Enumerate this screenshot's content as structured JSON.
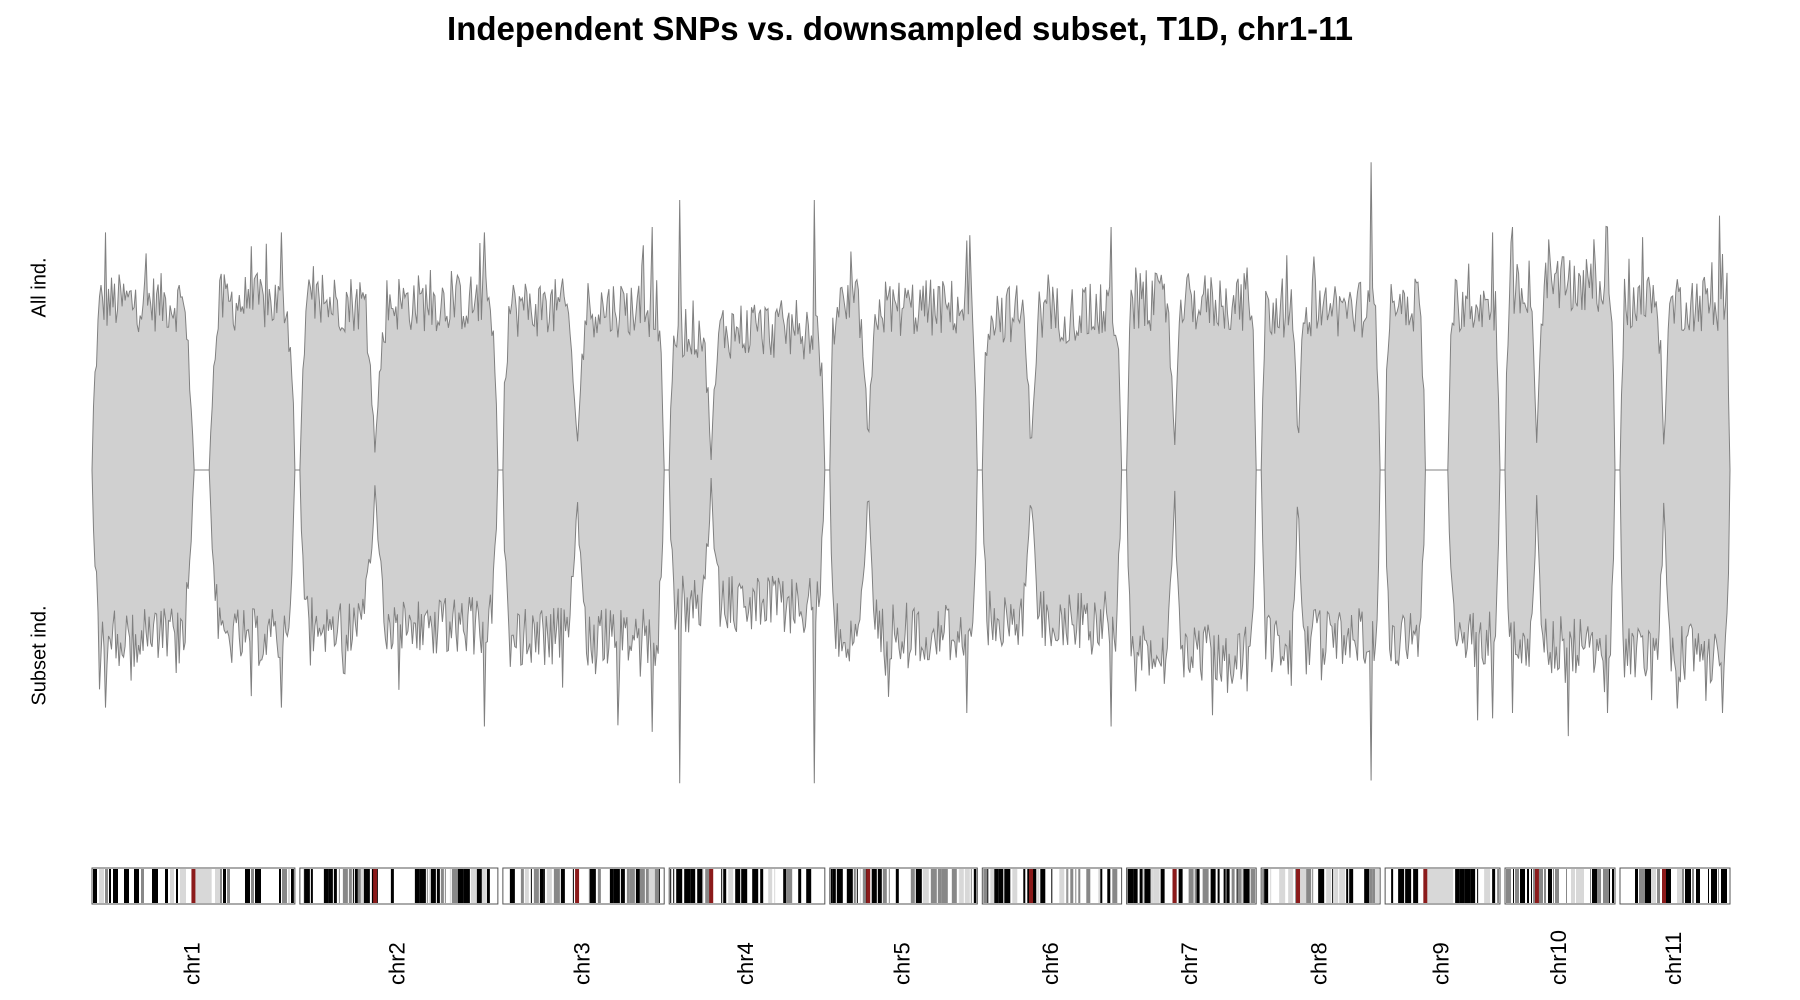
{
  "chart_data": {
    "type": "area",
    "title": "Independent SNPs vs. downsampled subset, T1D, chr1-11",
    "ylabel_top": "All ind.",
    "ylabel_bottom": "Subset ind.",
    "description_of_marks": "Mirrored density track: upper half = all individuals, lower half = subset individuals; ideogram strips below.",
    "chromosomes": [
      {
        "label": "chr1",
        "size": 249,
        "centromere": 0.5,
        "gap": [
          0.5,
          0.58
        ],
        "top_level": 0.62,
        "bottom_level": 0.62,
        "peak_top": 0.88,
        "peak_bottom": 0.88
      },
      {
        "label": "chr2",
        "size": 243,
        "centromere": 0.38,
        "gap": null,
        "top_level": 0.62,
        "bottom_level": 0.58,
        "peak_top": 0.88,
        "peak_bottom": 0.95
      },
      {
        "label": "chr3",
        "size": 198,
        "centromere": 0.46,
        "gap": null,
        "top_level": 0.6,
        "bottom_level": 0.62,
        "peak_top": 0.9,
        "peak_bottom": 0.97
      },
      {
        "label": "chr4",
        "size": 191,
        "centromere": 0.27,
        "gap": null,
        "top_level": 0.52,
        "bottom_level": 0.5,
        "peak_top": 1.0,
        "peak_bottom": 1.16
      },
      {
        "label": "chr5",
        "size": 181,
        "centromere": 0.26,
        "gap": null,
        "top_level": 0.6,
        "bottom_level": 0.6,
        "peak_top": 0.85,
        "peak_bottom": 0.9
      },
      {
        "label": "chr6",
        "size": 171,
        "centromere": 0.35,
        "gap": null,
        "top_level": 0.58,
        "bottom_level": 0.55,
        "peak_top": 0.9,
        "peak_bottom": 0.95
      },
      {
        "label": "chr7",
        "size": 159,
        "centromere": 0.37,
        "gap": null,
        "top_level": 0.62,
        "bottom_level": 0.68,
        "peak_top": 0.75,
        "peak_bottom": 0.82
      },
      {
        "label": "chr8",
        "size": 146,
        "centromere": 0.31,
        "gap": null,
        "top_level": 0.6,
        "bottom_level": 0.62,
        "peak_top": 1.14,
        "peak_bottom": 1.15
      },
      {
        "label": "chr9",
        "size": 141,
        "centromere": 0.35,
        "gap": [
          0.35,
          0.55
        ],
        "top_level": 0.62,
        "bottom_level": 0.62,
        "peak_top": 0.88,
        "peak_bottom": 0.92
      },
      {
        "label": "chr10",
        "size": 135,
        "centromere": 0.29,
        "gap": null,
        "top_level": 0.68,
        "bottom_level": 0.65,
        "peak_top": 0.9,
        "peak_bottom": 0.9
      },
      {
        "label": "chr11",
        "size": 135,
        "centromere": 0.4,
        "gap": null,
        "top_level": 0.62,
        "bottom_level": 0.68,
        "peak_top": 0.8,
        "peak_bottom": 0.9
      }
    ],
    "colors": {
      "fill": "#d0d0d0",
      "line": "#808080",
      "axis": "#808080",
      "ideogram_dark": "#000000",
      "ideogram_mid": "#888888",
      "ideogram_light": "#d8d8d8",
      "centromere": "#8b1a1a"
    }
  }
}
